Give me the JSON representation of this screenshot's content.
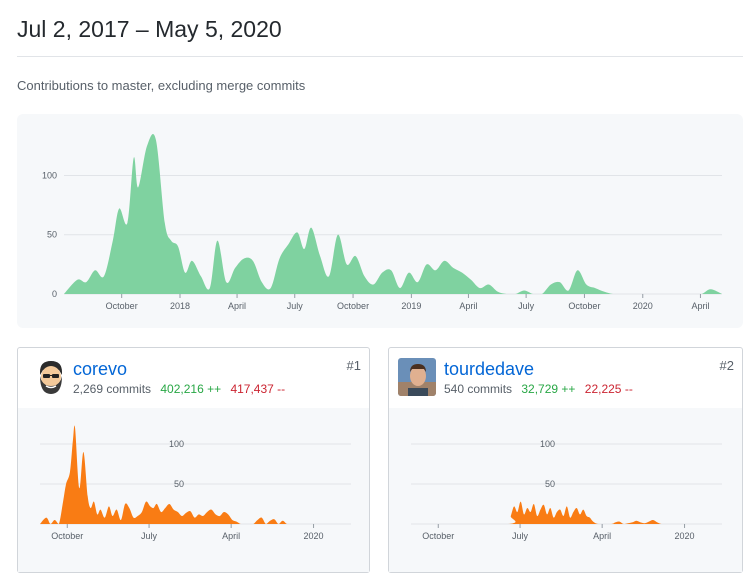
{
  "header": {
    "date_range": "Jul 2, 2017 – May 5, 2020",
    "subtitle": "Contributions to master, excluding merge commits"
  },
  "colors": {
    "main_area": "#7fd2a0",
    "contributor_area": "#f97c14",
    "grid": "#e1e4e8",
    "additions": "#28a745",
    "deletions": "#cb2431",
    "link": "#0366d6"
  },
  "chart_data": [
    {
      "type": "area",
      "y_ticks": [
        0,
        50,
        100
      ],
      "ylim": [
        0,
        135
      ],
      "x_ticks": [
        "October",
        "2018",
        "April",
        "July",
        "October",
        "2019",
        "April",
        "July",
        "October",
        "2020",
        "April"
      ],
      "x_tick_dates": [
        "2017-10-01",
        "2018-01-01",
        "2018-04-01",
        "2018-07-01",
        "2018-10-01",
        "2019-01-01",
        "2019-04-01",
        "2019-07-01",
        "2019-10-01",
        "2020-01-01",
        "2020-04-01"
      ],
      "xlim": [
        "2017-07-02",
        "2020-05-05"
      ],
      "series": [
        {
          "dates": [
            "2017-07-02",
            "2017-07-23",
            "2017-08-06",
            "2017-08-20",
            "2017-09-03",
            "2017-09-17",
            "2017-09-27",
            "2017-10-10",
            "2017-10-20",
            "2017-10-27",
            "2017-11-10",
            "2017-11-24",
            "2017-12-08",
            "2017-12-18",
            "2017-12-29",
            "2018-01-09",
            "2018-01-20",
            "2018-02-03",
            "2018-02-17",
            "2018-03-01",
            "2018-03-15",
            "2018-03-29",
            "2018-04-12",
            "2018-04-26",
            "2018-05-10",
            "2018-05-24",
            "2018-06-07",
            "2018-06-21",
            "2018-07-05",
            "2018-07-16",
            "2018-07-27",
            "2018-08-10",
            "2018-08-24",
            "2018-09-07",
            "2018-09-21",
            "2018-10-05",
            "2018-10-19",
            "2018-11-02",
            "2018-11-16",
            "2018-11-30",
            "2018-12-14",
            "2018-12-28",
            "2019-01-11",
            "2019-01-25",
            "2019-02-08",
            "2019-02-22",
            "2019-03-08",
            "2019-03-22",
            "2019-04-05",
            "2019-04-19",
            "2019-05-03",
            "2019-05-17",
            "2019-05-31",
            "2019-06-14",
            "2019-06-28",
            "2019-07-12",
            "2019-07-26",
            "2019-08-09",
            "2019-08-23",
            "2019-09-06",
            "2019-09-20",
            "2019-10-04",
            "2019-10-18",
            "2019-11-01",
            "2019-11-15",
            "2019-11-29",
            "2019-12-13",
            "2019-12-27",
            "2020-01-10",
            "2020-01-24",
            "2020-02-07",
            "2020-02-21",
            "2020-03-06",
            "2020-03-20",
            "2020-04-03",
            "2020-04-17",
            "2020-05-05"
          ],
          "values": [
            0,
            12,
            10,
            20,
            15,
            45,
            72,
            60,
            115,
            90,
            125,
            130,
            60,
            45,
            40,
            18,
            28,
            15,
            5,
            45,
            10,
            22,
            30,
            28,
            10,
            5,
            30,
            42,
            52,
            38,
            56,
            32,
            15,
            50,
            25,
            32,
            15,
            8,
            18,
            20,
            5,
            18,
            10,
            25,
            20,
            28,
            22,
            18,
            12,
            5,
            8,
            2,
            0,
            0,
            3,
            0,
            0,
            8,
            10,
            3,
            20,
            8,
            5,
            2,
            0,
            0,
            0,
            0,
            0,
            0,
            0,
            0,
            0,
            0,
            0,
            4,
            0
          ]
        }
      ]
    },
    {
      "type": "area",
      "y_ticks": [
        50,
        100
      ],
      "ylim": [
        0,
        135
      ],
      "x_ticks": [
        "October",
        "July",
        "April",
        "2020"
      ],
      "x_tick_dates": [
        "2017-10-01",
        "2018-07-01",
        "2019-04-01",
        "2020-01-01"
      ],
      "xlim": [
        "2017-07-02",
        "2020-05-05"
      ],
      "series": [
        {
          "name": "corevo",
          "dates": [
            "2017-07-02",
            "2017-07-23",
            "2017-08-06",
            "2017-08-20",
            "2017-09-03",
            "2017-09-17",
            "2017-09-27",
            "2017-10-10",
            "2017-10-20",
            "2017-10-27",
            "2017-11-10",
            "2017-11-24",
            "2017-12-08",
            "2017-12-18",
            "2017-12-29",
            "2018-01-09",
            "2018-01-20",
            "2018-02-03",
            "2018-02-17",
            "2018-03-01",
            "2018-03-15",
            "2018-03-29",
            "2018-04-12",
            "2018-04-26",
            "2018-05-10",
            "2018-05-24",
            "2018-06-07",
            "2018-06-21",
            "2018-07-05",
            "2018-07-16",
            "2018-07-27",
            "2018-08-10",
            "2018-08-24",
            "2018-09-07",
            "2018-09-21",
            "2018-10-05",
            "2018-10-19",
            "2018-11-02",
            "2018-11-16",
            "2018-11-30",
            "2018-12-14",
            "2018-12-28",
            "2019-01-11",
            "2019-01-25",
            "2019-02-08",
            "2019-02-22",
            "2019-03-08",
            "2019-03-22",
            "2019-04-05",
            "2019-04-19",
            "2019-05-03",
            "2019-05-17",
            "2019-05-31",
            "2019-06-14",
            "2019-06-28",
            "2019-07-12",
            "2019-07-26",
            "2019-08-09",
            "2019-08-23",
            "2019-09-06",
            "2019-09-20",
            "2019-10-04",
            "2019-10-18",
            "2019-11-01",
            "2019-11-15",
            "2019-11-29",
            "2019-12-13",
            "2019-12-27",
            "2020-01-10",
            "2020-05-05"
          ],
          "values": [
            0,
            8,
            0,
            5,
            0,
            28,
            50,
            65,
            105,
            120,
            45,
            90,
            35,
            20,
            28,
            12,
            18,
            8,
            22,
            10,
            18,
            5,
            25,
            20,
            8,
            10,
            15,
            28,
            22,
            20,
            25,
            15,
            20,
            25,
            18,
            15,
            10,
            14,
            16,
            8,
            12,
            10,
            15,
            18,
            12,
            10,
            15,
            12,
            5,
            3,
            0,
            0,
            0,
            0,
            5,
            8,
            0,
            4,
            6,
            0,
            4,
            0,
            0,
            0,
            0,
            0,
            0,
            0,
            0,
            0
          ]
        }
      ]
    },
    {
      "type": "area",
      "y_ticks": [
        50,
        100
      ],
      "ylim": [
        0,
        135
      ],
      "x_ticks": [
        "October",
        "July",
        "April",
        "2020"
      ],
      "x_tick_dates": [
        "2017-10-01",
        "2018-07-01",
        "2019-04-01",
        "2020-01-01"
      ],
      "xlim": [
        "2017-07-02",
        "2020-05-05"
      ],
      "series": [
        {
          "name": "tourdedave",
          "dates": [
            "2017-07-02",
            "2018-05-20",
            "2018-05-31",
            "2018-06-11",
            "2018-06-22",
            "2018-07-03",
            "2018-07-14",
            "2018-07-25",
            "2018-08-05",
            "2018-08-16",
            "2018-08-27",
            "2018-09-07",
            "2018-09-18",
            "2018-09-29",
            "2018-10-10",
            "2018-10-21",
            "2018-11-01",
            "2018-11-12",
            "2018-11-23",
            "2018-12-04",
            "2018-12-15",
            "2018-12-26",
            "2019-01-06",
            "2019-01-17",
            "2019-01-28",
            "2019-02-08",
            "2019-02-19",
            "2019-03-02",
            "2019-03-20",
            "2019-05-01",
            "2019-05-15",
            "2019-05-29",
            "2019-06-12",
            "2019-06-26",
            "2019-07-10",
            "2019-07-24",
            "2019-08-07",
            "2019-08-21",
            "2019-09-04",
            "2019-09-18",
            "2019-10-02",
            "2019-10-16",
            "2019-10-30",
            "2020-05-05"
          ],
          "values": [
            0,
            0,
            10,
            22,
            15,
            28,
            12,
            20,
            15,
            25,
            10,
            18,
            24,
            12,
            20,
            8,
            15,
            18,
            10,
            22,
            8,
            15,
            20,
            12,
            18,
            10,
            8,
            3,
            0,
            0,
            2,
            3,
            0,
            1,
            2,
            4,
            2,
            1,
            3,
            5,
            2,
            0,
            0,
            0
          ]
        }
      ]
    }
  ],
  "contributors": [
    {
      "name": "corevo",
      "commits": "2,269 commits",
      "additions": "402,216 ++",
      "deletions": "417,437 --",
      "rank": "#1",
      "avatar_icon": "bearded-man-cartoon-icon"
    },
    {
      "name": "tourdedave",
      "commits": "540 commits",
      "additions": "32,729 ++",
      "deletions": "22,225 --",
      "rank": "#2",
      "avatar_icon": "profile-photo-icon"
    }
  ]
}
